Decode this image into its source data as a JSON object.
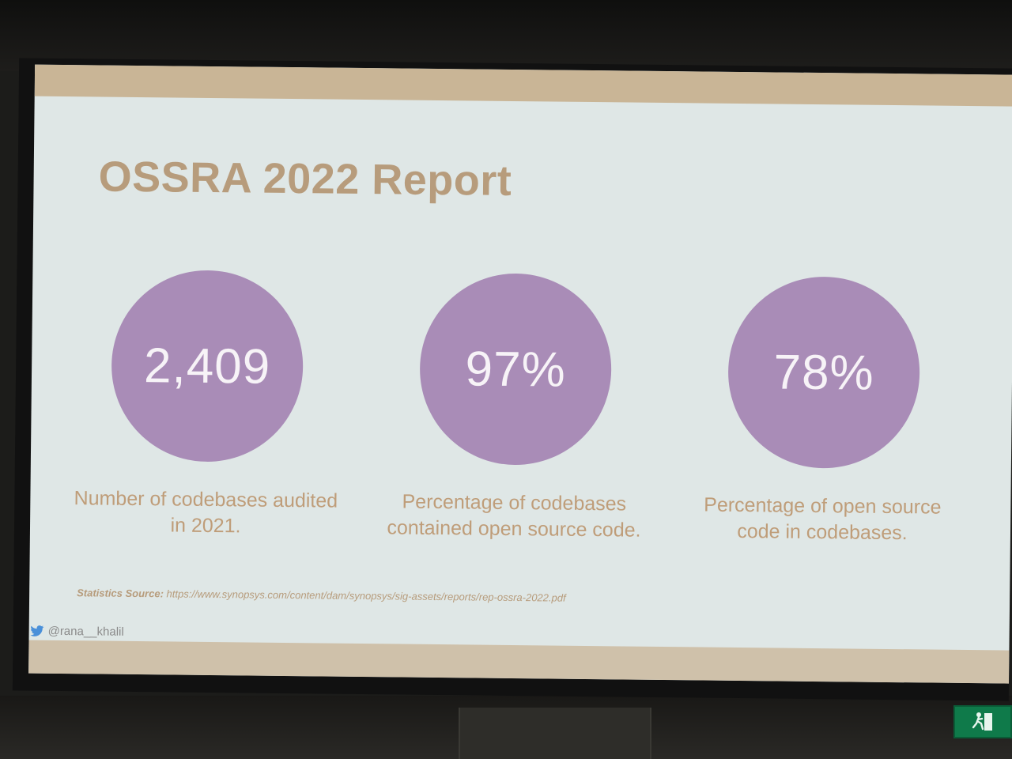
{
  "slide": {
    "title": "OSSRA 2022 Report",
    "stats": [
      {
        "value": "2,409",
        "caption": "Number of codebases audited in 2021."
      },
      {
        "value": "97%",
        "caption": "Percentage of codebases contained open source code."
      },
      {
        "value": "78%",
        "caption": "Percentage of open source code in codebases."
      }
    ],
    "source_label": "Statistics Source:",
    "source_url": "https://www.synopsys.com/content/dam/synopsys/sig-assets/reports/rep-ossra-2022.pdf",
    "social_handle": "@rana__khalil"
  },
  "colors": {
    "title": "#b79c7c",
    "circle": "#a98cb7",
    "caption": "#bf9d79",
    "screen_bg": "#dfe7e6",
    "band": "#c9b596"
  },
  "icons": [
    "twitter-icon",
    "exit-sign-icon"
  ]
}
